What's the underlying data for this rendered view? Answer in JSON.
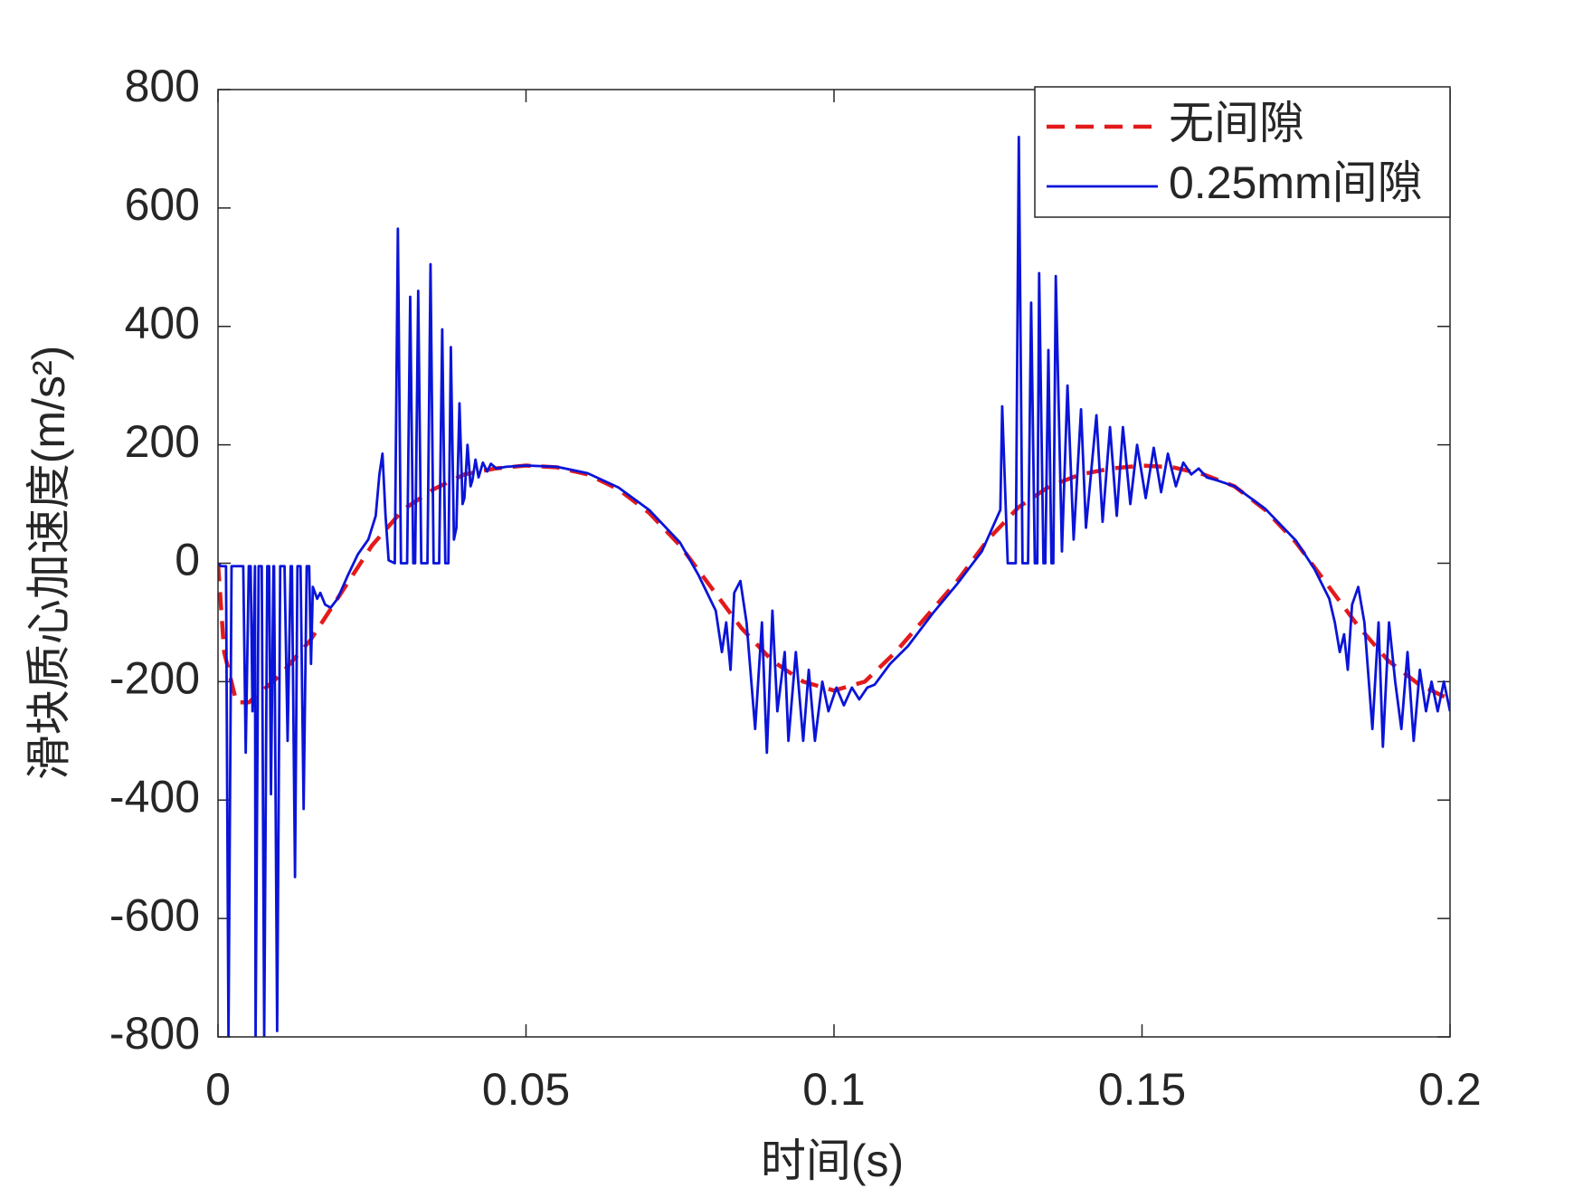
{
  "chart_data": {
    "type": "line",
    "xlabel": "时间(s)",
    "ylabel": "滑块质心加速度(m/s²)",
    "xlim": [
      0,
      0.2
    ],
    "ylim": [
      -800,
      800
    ],
    "xticks": [
      0,
      0.05,
      0.1,
      0.15,
      0.2
    ],
    "yticks": [
      -800,
      -600,
      -400,
      -200,
      0,
      200,
      400,
      600,
      800
    ],
    "legend": "upper right",
    "grid": false,
    "series": [
      {
        "name": "无间隙",
        "color": "#e31a1c",
        "dash": true,
        "x": [
          0,
          0.001,
          0.003,
          0.005,
          0.01,
          0.015,
          0.02,
          0.025,
          0.03,
          0.035,
          0.04,
          0.045,
          0.05,
          0.055,
          0.06,
          0.065,
          0.07,
          0.075,
          0.08,
          0.085,
          0.09,
          0.095,
          0.1,
          0.105,
          0.11,
          0.115,
          0.12,
          0.125,
          0.13,
          0.135,
          0.14,
          0.145,
          0.15,
          0.155,
          0.16,
          0.165,
          0.17,
          0.175,
          0.18,
          0.185,
          0.19,
          0.195,
          0.2
        ],
        "values": [
          0,
          -150,
          -235,
          -235,
          -190,
          -130,
          -50,
          30,
          90,
          125,
          150,
          160,
          165,
          162,
          150,
          125,
          85,
          30,
          -40,
          -110,
          -165,
          -200,
          -215,
          -200,
          -150,
          -90,
          -30,
          40,
          95,
          130,
          150,
          160,
          165,
          162,
          150,
          130,
          90,
          35,
          -35,
          -105,
          -165,
          -205,
          -230
        ]
      },
      {
        "name": "0.25mm间隙",
        "color": "#0a14d8",
        "dash": false,
        "x": [
          0,
          0.0005,
          0.0013,
          0.0017,
          0.0022,
          0.0041,
          0.0045,
          0.005,
          0.0053,
          0.0056,
          0.006,
          0.0061,
          0.0066,
          0.0071,
          0.0075,
          0.008,
          0.0083,
          0.0086,
          0.009,
          0.0091,
          0.0096,
          0.0101,
          0.0108,
          0.0113,
          0.0118,
          0.012,
          0.0125,
          0.0129,
          0.0134,
          0.0139,
          0.0144,
          0.0148,
          0.0151,
          0.0154,
          0.0161,
          0.0166,
          0.0174,
          0.0183,
          0.0194,
          0.0211,
          0.0227,
          0.0244,
          0.0256,
          0.0262,
          0.0267,
          0.0272,
          0.0277,
          0.0287,
          0.0292,
          0.0297,
          0.0307,
          0.0312,
          0.0317,
          0.032,
          0.0325,
          0.033,
          0.034,
          0.0345,
          0.035,
          0.0359,
          0.0364,
          0.0369,
          0.0374,
          0.0378,
          0.0383,
          0.0387,
          0.0392,
          0.0397,
          0.04,
          0.0405,
          0.041,
          0.0413,
          0.0418,
          0.0423,
          0.043,
          0.0437,
          0.0443,
          0.0452,
          0.0468,
          0.05,
          0.055,
          0.06,
          0.065,
          0.07,
          0.075,
          0.078,
          0.0808,
          0.0818,
          0.0825,
          0.0832,
          0.0838,
          0.0848,
          0.0858,
          0.0872,
          0.0883,
          0.0891,
          0.09,
          0.0908,
          0.092,
          0.0926,
          0.0938,
          0.095,
          0.0959,
          0.0969,
          0.0981,
          0.0991,
          0.1004,
          0.1016,
          0.1029,
          0.1041,
          0.1054,
          0.1066,
          0.1091,
          0.112,
          0.116,
          0.12,
          0.124,
          0.127,
          0.1273,
          0.1282,
          0.1295,
          0.13,
          0.1306,
          0.1315,
          0.132,
          0.1326,
          0.133,
          0.1333,
          0.134,
          0.1343,
          0.1348,
          0.1353,
          0.1356,
          0.136,
          0.137,
          0.1379,
          0.1389,
          0.1401,
          0.1409,
          0.1426,
          0.1436,
          0.1448,
          0.1459,
          0.1469,
          0.1481,
          0.1492,
          0.1506,
          0.1519,
          0.1531,
          0.1542,
          0.1555,
          0.1567,
          0.158,
          0.1592,
          0.1605,
          0.1622,
          0.165,
          0.17,
          0.175,
          0.178,
          0.1804,
          0.1813,
          0.1821,
          0.1828,
          0.1834,
          0.1841,
          0.1851,
          0.1861,
          0.1874,
          0.1884,
          0.1891,
          0.1901,
          0.1911,
          0.1921,
          0.1931,
          0.1941,
          0.1951,
          0.1961,
          0.197,
          0.198,
          0.199,
          0.2
        ],
        "values": [
          0,
          -5,
          -5,
          -800,
          -5,
          -5,
          -320,
          -5,
          -5,
          -250,
          -5,
          -800,
          -5,
          -5,
          -800,
          -5,
          -5,
          -390,
          -5,
          -5,
          -790,
          -5,
          -5,
          -300,
          -5,
          -5,
          -530,
          -5,
          -5,
          -415,
          -5,
          -5,
          -170,
          -40,
          -60,
          -50,
          -70,
          -75,
          -60,
          -20,
          15,
          40,
          80,
          150,
          185,
          80,
          5,
          0,
          565,
          0,
          0,
          450,
          0,
          0,
          460,
          0,
          0,
          505,
          0,
          0,
          395,
          0,
          0,
          365,
          40,
          60,
          270,
          100,
          110,
          200,
          130,
          140,
          175,
          145,
          170,
          155,
          168,
          160,
          163,
          165,
          163,
          152,
          128,
          90,
          35,
          -20,
          -80,
          -150,
          -100,
          -180,
          -50,
          -30,
          -100,
          -280,
          -100,
          -320,
          -80,
          -250,
          -150,
          -300,
          -150,
          -300,
          -180,
          -300,
          -200,
          -250,
          -210,
          -240,
          -210,
          -230,
          -210,
          -205,
          -170,
          -140,
          -85,
          -35,
          20,
          90,
          265,
          0,
          0,
          720,
          0,
          0,
          440,
          0,
          0,
          490,
          0,
          0,
          360,
          0,
          0,
          485,
          20,
          300,
          40,
          260,
          60,
          250,
          70,
          230,
          80,
          230,
          100,
          200,
          110,
          195,
          120,
          185,
          130,
          170,
          150,
          160,
          145,
          140,
          130,
          92,
          38,
          -10,
          -60,
          -100,
          -150,
          -120,
          -180,
          -70,
          -40,
          -100,
          -280,
          -100,
          -310,
          -100,
          -200,
          -280,
          -150,
          -300,
          -180,
          -250,
          -200,
          -250,
          -200,
          -250
        ]
      }
    ]
  }
}
